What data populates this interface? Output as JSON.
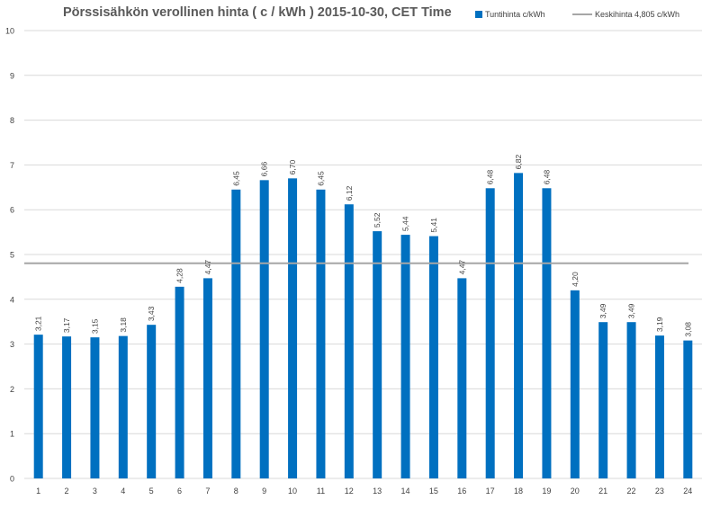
{
  "colors": {
    "bar": "#0070C0",
    "average_line": "#A6A6A6",
    "grid": "#D9D9D9",
    "text": "#404040"
  },
  "chart_data": {
    "type": "bar",
    "title": "Pörssisähkön verollinen hinta ( c / kWh ) 2015-10-30, CET Time",
    "xlabel": "",
    "ylabel": "",
    "ylim": [
      0,
      10
    ],
    "yticks": [
      "0",
      "1",
      "2",
      "3",
      "4",
      "5",
      "6",
      "7",
      "8",
      "9",
      "10"
    ],
    "grid": true,
    "legend_position": "top-right",
    "categories": [
      "1",
      "2",
      "3",
      "4",
      "5",
      "6",
      "7",
      "8",
      "9",
      "10",
      "11",
      "12",
      "13",
      "14",
      "15",
      "16",
      "17",
      "18",
      "19",
      "20",
      "21",
      "22",
      "23",
      "24"
    ],
    "series": [
      {
        "name": "Tuntihinta c/kWh",
        "values": [
          3.21,
          3.17,
          3.15,
          3.18,
          3.43,
          4.28,
          4.47,
          6.45,
          6.66,
          6.7,
          6.45,
          6.12,
          5.52,
          5.44,
          5.41,
          4.47,
          6.48,
          6.82,
          6.48,
          4.2,
          3.49,
          3.49,
          3.19,
          3.08
        ],
        "labels": [
          "3,21",
          "3,17",
          "3,15",
          "3,18",
          "3,43",
          "4,28",
          "4,47",
          "6,45",
          "6,66",
          "6,70",
          "6,45",
          "6,12",
          "5,52",
          "5,44",
          "5,41",
          "4,47",
          "6,48",
          "6,82",
          "6,48",
          "4,20",
          "3,49",
          "3,49",
          "3,19",
          "3,08"
        ]
      }
    ],
    "average": {
      "name": "Keskihinta 4,805 c/kWh",
      "value": 4.805
    }
  }
}
